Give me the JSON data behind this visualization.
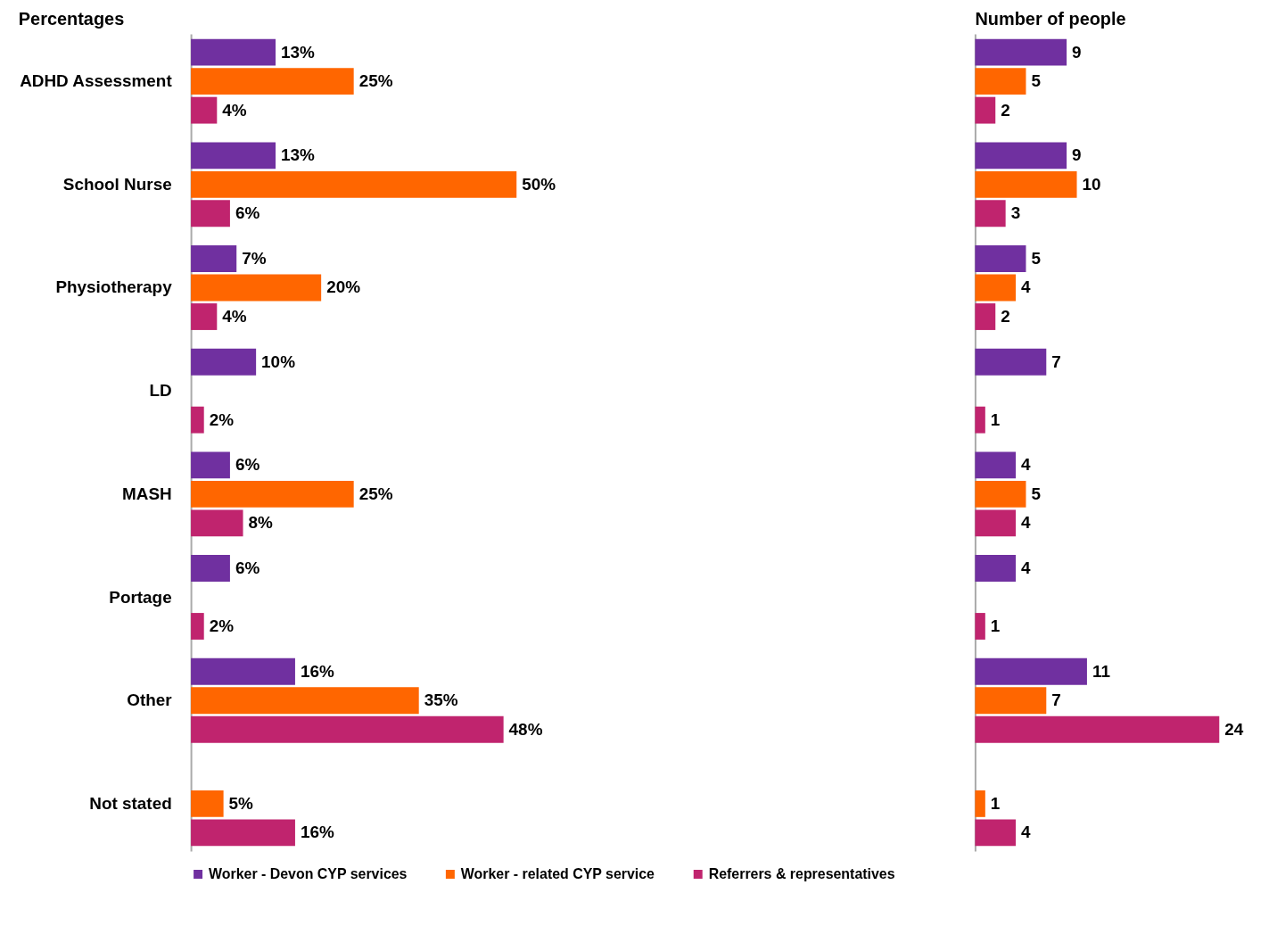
{
  "chart_data": [
    {
      "type": "bar",
      "orientation": "horizontal",
      "title": "Percentages",
      "legend": "bottom",
      "tick_labels": "y",
      "categories": [
        "ADHD Assessment",
        "School Nurse",
        "Physiotherapy",
        "LD",
        "MASH",
        "Portage",
        "Other",
        "Not stated"
      ],
      "series": [
        {
          "name": "Worker - Devon CYP services",
          "color": "#7030a0",
          "values": [
            13,
            13,
            7,
            10,
            6,
            6,
            16,
            null
          ],
          "value_labels": [
            "13%",
            "13%",
            "7%",
            "10%",
            "6%",
            "6%",
            "16%",
            null
          ]
        },
        {
          "name": "Worker - related CYP service",
          "color": "#ff6600",
          "values": [
            25,
            50,
            20,
            null,
            25,
            null,
            35,
            5
          ],
          "value_labels": [
            "25%",
            "50%",
            "20%",
            null,
            "25%",
            null,
            "35%",
            "5%"
          ]
        },
        {
          "name": "Referrers & representatives",
          "color": "#c0246e",
          "values": [
            4,
            6,
            4,
            2,
            8,
            2,
            48,
            16
          ],
          "value_labels": [
            "4%",
            "6%",
            "4%",
            "2%",
            "8%",
            "2%",
            "48%",
            "16%"
          ]
        }
      ]
    },
    {
      "type": "bar",
      "orientation": "horizontal",
      "title": "Number of people",
      "tick_labels": false,
      "data_labels": true,
      "categories": [
        null,
        null,
        null,
        null,
        null,
        null,
        null,
        null
      ],
      "series": [
        {
          "color": "#7030a0",
          "values": [
            9,
            9,
            5,
            7,
            4,
            4,
            11,
            null
          ]
        },
        {
          "color": "#ff6600",
          "values": [
            5,
            10,
            4,
            null,
            5,
            null,
            7,
            1
          ]
        },
        {
          "color": "#c0246e",
          "values": [
            2,
            3,
            2,
            1,
            4,
            1,
            24,
            4
          ]
        }
      ]
    }
  ]
}
